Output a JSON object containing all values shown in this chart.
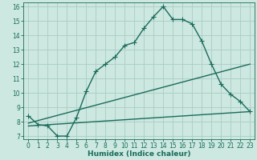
{
  "xlabel": "Humidex (Indice chaleur)",
  "bg_color": "#cce8e0",
  "grid_color": "#aaccc4",
  "line_color": "#1a6b5a",
  "line_width": 1.0,
  "marker": "+",
  "marker_size": 4,
  "marker_edge_width": 0.8,
  "xlim": [
    -0.5,
    23.5
  ],
  "ylim": [
    6.8,
    16.3
  ],
  "yticks": [
    7,
    8,
    9,
    10,
    11,
    12,
    13,
    14,
    15,
    16
  ],
  "xticks": [
    0,
    1,
    2,
    3,
    4,
    5,
    6,
    7,
    8,
    9,
    10,
    11,
    12,
    13,
    14,
    15,
    16,
    17,
    18,
    19,
    20,
    21,
    22,
    23
  ],
  "tick_fontsize": 5.5,
  "xlabel_fontsize": 6.5,
  "series": [
    {
      "x": [
        0,
        1,
        2,
        3,
        4,
        5,
        6,
        7,
        8,
        9,
        10,
        11,
        12,
        13,
        14,
        15,
        16,
        17,
        18,
        19,
        20,
        21,
        22,
        23
      ],
      "y": [
        8.4,
        7.8,
        7.7,
        7.0,
        7.0,
        8.3,
        10.1,
        11.5,
        12.0,
        12.5,
        13.3,
        13.5,
        14.5,
        15.3,
        16.0,
        15.1,
        15.1,
        14.8,
        13.6,
        12.0,
        10.6,
        9.9,
        9.4,
        8.7
      ],
      "marker": true
    },
    {
      "x": [
        0,
        23
      ],
      "y": [
        7.7,
        8.7
      ],
      "marker": false
    },
    {
      "x": [
        0,
        23
      ],
      "y": [
        7.9,
        12.0
      ],
      "marker": false
    }
  ]
}
